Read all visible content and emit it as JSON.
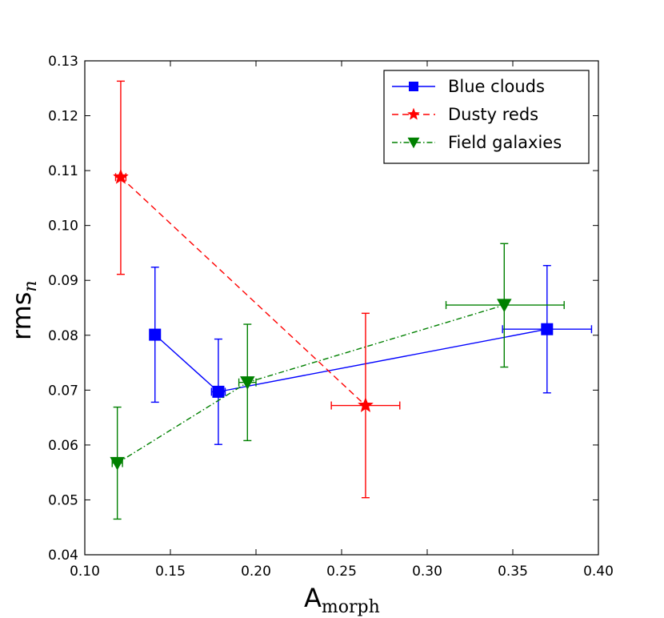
{
  "chart_data": {
    "type": "line",
    "xlabel": "A",
    "xlabel_sub": "morph",
    "ylabel": "rms",
    "ylabel_sub": "n",
    "xlim": [
      0.1,
      0.4
    ],
    "ylim": [
      0.04,
      0.13
    ],
    "xticks": [
      "0.10",
      "0.15",
      "0.20",
      "0.25",
      "0.30",
      "0.35",
      "0.40"
    ],
    "yticks": [
      "0.04",
      "0.05",
      "0.06",
      "0.07",
      "0.08",
      "0.09",
      "0.10",
      "0.11",
      "0.12",
      "0.13"
    ],
    "grid": false,
    "legend_position": "top-right",
    "series": [
      {
        "name": "Blue clouds",
        "color": "#0000ff",
        "linestyle": "solid",
        "marker": "square",
        "points": [
          {
            "x": 0.141,
            "y": 0.0801,
            "xerr_lo": 0.0,
            "xerr_hi": 0.0,
            "yerr_lo": 0.0123,
            "yerr_hi": 0.0123
          },
          {
            "x": 0.178,
            "y": 0.0697,
            "xerr_lo": 0.004,
            "xerr_hi": 0.004,
            "yerr_lo": 0.0096,
            "yerr_hi": 0.0096
          },
          {
            "x": 0.37,
            "y": 0.0811,
            "xerr_lo": 0.026,
            "xerr_hi": 0.026,
            "yerr_lo": 0.0116,
            "yerr_hi": 0.0116
          }
        ]
      },
      {
        "name": "Dusty reds",
        "color": "#ff0000",
        "linestyle": "dashed",
        "marker": "star",
        "points": [
          {
            "x": 0.121,
            "y": 0.1088,
            "xerr_lo": 0.003,
            "xerr_hi": 0.003,
            "yerr_lo": 0.0177,
            "yerr_hi": 0.0175
          },
          {
            "x": 0.264,
            "y": 0.0672,
            "xerr_lo": 0.02,
            "xerr_hi": 0.02,
            "yerr_lo": 0.0168,
            "yerr_hi": 0.0168
          }
        ]
      },
      {
        "name": "Field galaxies",
        "color": "#008000",
        "linestyle": "dashdot",
        "marker": "triangle-down",
        "points": [
          {
            "x": 0.119,
            "y": 0.0567,
            "xerr_lo": 0.003,
            "xerr_hi": 0.003,
            "yerr_lo": 0.0102,
            "yerr_hi": 0.0102
          },
          {
            "x": 0.195,
            "y": 0.0714,
            "xerr_lo": 0.005,
            "xerr_hi": 0.005,
            "yerr_lo": 0.0106,
            "yerr_hi": 0.0106
          },
          {
            "x": 0.345,
            "y": 0.0855,
            "xerr_lo": 0.034,
            "xerr_hi": 0.035,
            "yerr_lo": 0.0113,
            "yerr_hi": 0.0112
          }
        ]
      }
    ]
  }
}
